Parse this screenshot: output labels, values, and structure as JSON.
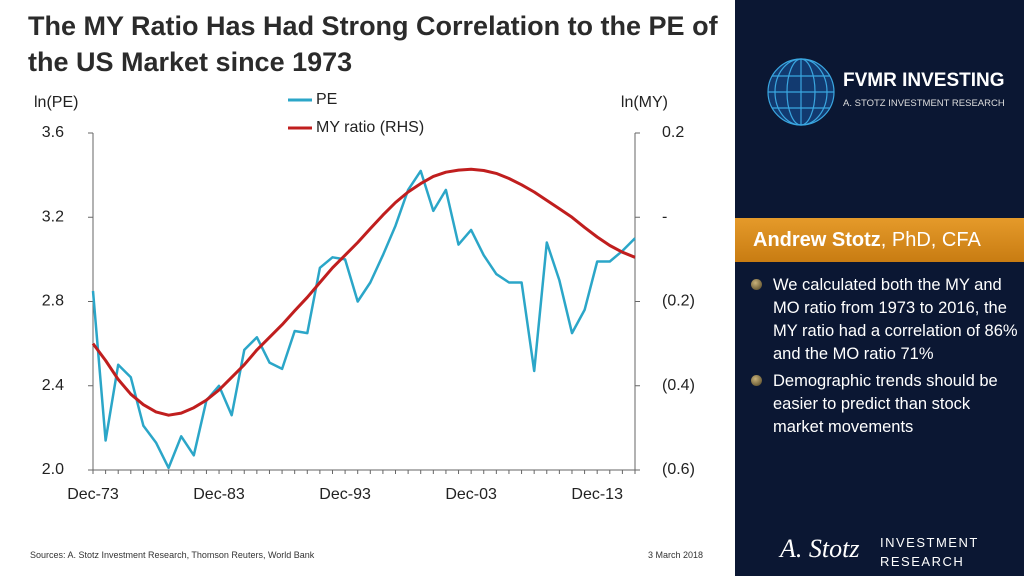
{
  "title": "The MY Ratio Has Had Strong Correlation to the PE of the US Market since 1973",
  "chart_data": {
    "type": "line",
    "y_label": "ln(PE)",
    "y2_label": "ln(MY)",
    "categories": [
      "Dec-73",
      null,
      null,
      null,
      null,
      null,
      null,
      null,
      null,
      null,
      "Dec-83",
      null,
      null,
      null,
      null,
      null,
      null,
      null,
      null,
      null,
      "Dec-93",
      null,
      null,
      null,
      null,
      null,
      null,
      null,
      null,
      null,
      "Dec-03",
      null,
      null,
      null,
      null,
      null,
      null,
      null,
      null,
      null,
      "Dec-13",
      null,
      null,
      null
    ],
    "series": [
      {
        "name": "PE",
        "color": "#2ba6c8",
        "values": [
          2.85,
          2.14,
          2.5,
          2.44,
          2.21,
          2.13,
          2.01,
          2.16,
          2.07,
          2.33,
          2.4,
          2.26,
          2.57,
          2.63,
          2.51,
          2.48,
          2.66,
          2.65,
          2.96,
          3.01,
          3.0,
          2.8,
          2.89,
          3.02,
          3.16,
          3.33,
          3.42,
          3.23,
          3.33,
          3.07,
          3.14,
          3.02,
          2.93,
          2.89,
          2.89,
          2.47,
          3.08,
          2.9,
          2.65,
          2.76,
          2.99,
          2.99,
          3.04,
          3.1
        ]
      },
      {
        "name": "MY ratio (RHS)",
        "color": "#c01e1e",
        "axis": "y2",
        "values": [
          -0.3,
          -0.34,
          -0.385,
          -0.42,
          -0.445,
          -0.462,
          -0.47,
          -0.465,
          -0.452,
          -0.434,
          -0.41,
          -0.38,
          -0.35,
          -0.315,
          -0.285,
          -0.255,
          -0.222,
          -0.19,
          -0.155,
          -0.12,
          -0.09,
          -0.06,
          -0.027,
          0.005,
          0.035,
          0.06,
          0.08,
          0.097,
          0.107,
          0.112,
          0.114,
          0.111,
          0.104,
          0.092,
          0.077,
          0.06,
          0.04,
          0.02,
          0.0,
          -0.024,
          -0.047,
          -0.067,
          -0.083,
          -0.095
        ]
      }
    ],
    "ylim": [
      2.0,
      3.6
    ],
    "yticks": [
      {
        "value": 2.0,
        "label": "2.0"
      },
      2.4,
      2.8,
      3.2,
      3.6
    ],
    "y2lim": [
      -0.6,
      0.2
    ],
    "y2ticks": [
      {
        "value": -0.6,
        "label": "(0.6)"
      },
      {
        "value": -0.4,
        "label": "(0.4)"
      },
      {
        "value": -0.2,
        "label": "(0.2)"
      },
      {
        "value": 0,
        "label": "-"
      },
      0.2
    ],
    "grid": false,
    "legend": "top"
  },
  "sources": "Sources: A. Stotz Investment Research, Thomson Reuters, World Bank",
  "date": "3 March 2018",
  "panel": {
    "brand": "FVMR INVESTING",
    "brand_sub": "A. STOTZ INVESTMENT RESEARCH",
    "author_name": "Andrew Stotz",
    "author_credentials": ", PhD, CFA",
    "bullets": [
      "We calculated both the MY and MO ratio from 1973 to 2016, the MY ratio had a correlation of 86% and the MO ratio 71%",
      "Demographic trends should be easier to predict than stock market movements"
    ]
  },
  "footer_logo": {
    "signature": "A. Stotz",
    "line1": "INVESTMENT",
    "line2": "RESEARCH"
  }
}
